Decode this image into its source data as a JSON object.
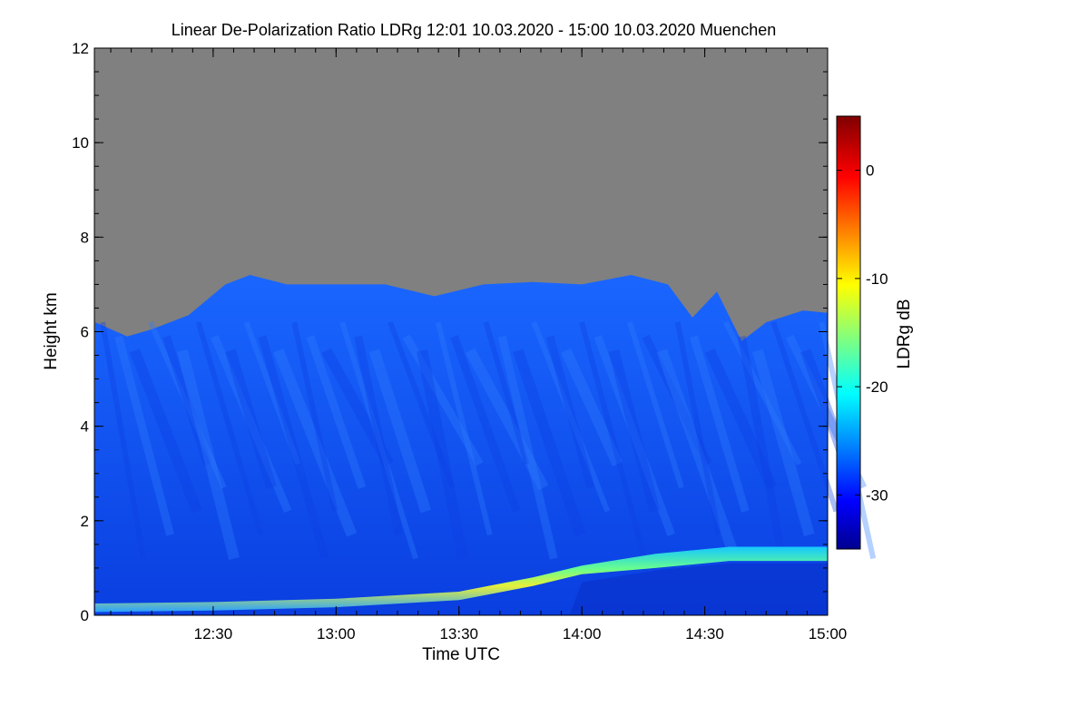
{
  "chart_data": {
    "type": "heatmap",
    "title": "Linear De-Polarization Ratio LDRg   12:01 10.03.2020 - 15:00 10.03.2020 Muenchen",
    "xlabel": "Time UTC",
    "ylabel": "Height km",
    "x_range_hours": [
      12.0167,
      15.0
    ],
    "y_range_km": [
      0,
      12
    ],
    "x_ticks": [
      {
        "value": 12.5,
        "label": "12:30"
      },
      {
        "value": 13.0,
        "label": "13:00"
      },
      {
        "value": 13.5,
        "label": "13:30"
      },
      {
        "value": 14.0,
        "label": "14:00"
      },
      {
        "value": 14.5,
        "label": "14:30"
      },
      {
        "value": 15.0,
        "label": "15:00"
      }
    ],
    "y_ticks": [
      {
        "value": 0,
        "label": "0"
      },
      {
        "value": 2,
        "label": "2"
      },
      {
        "value": 4,
        "label": "4"
      },
      {
        "value": 6,
        "label": "6"
      },
      {
        "value": 8,
        "label": "8"
      },
      {
        "value": 10,
        "label": "10"
      },
      {
        "value": 12,
        "label": "12"
      }
    ],
    "colorbar": {
      "label": "LDRg dB",
      "range": [
        -35,
        5
      ],
      "colormap": "jet",
      "ticks": [
        {
          "value": 0,
          "label": "0"
        },
        {
          "value": -10,
          "label": "-10"
        },
        {
          "value": -20,
          "label": "-20"
        },
        {
          "value": -30,
          "label": "-30"
        }
      ]
    },
    "no_signal_color": "#808080",
    "layers": {
      "signal_top_km": [
        {
          "t": 12.02,
          "h": 6.2
        },
        {
          "t": 12.15,
          "h": 5.9
        },
        {
          "t": 12.25,
          "h": 6.05
        },
        {
          "t": 12.4,
          "h": 6.35
        },
        {
          "t": 12.55,
          "h": 7.0
        },
        {
          "t": 12.65,
          "h": 7.2
        },
        {
          "t": 12.8,
          "h": 7.0
        },
        {
          "t": 13.0,
          "h": 7.0
        },
        {
          "t": 13.2,
          "h": 7.0
        },
        {
          "t": 13.4,
          "h": 6.75
        },
        {
          "t": 13.6,
          "h": 7.0
        },
        {
          "t": 13.8,
          "h": 7.05
        },
        {
          "t": 14.0,
          "h": 7.0
        },
        {
          "t": 14.2,
          "h": 7.2
        },
        {
          "t": 14.35,
          "h": 7.0
        },
        {
          "t": 14.45,
          "h": 6.3
        },
        {
          "t": 14.55,
          "h": 6.85
        },
        {
          "t": 14.65,
          "h": 5.8
        },
        {
          "t": 14.75,
          "h": 6.2
        },
        {
          "t": 14.9,
          "h": 6.45
        },
        {
          "t": 15.0,
          "h": 6.4
        }
      ],
      "boundary_layer_top_km": [
        {
          "t": 12.02,
          "h": 0.25
        },
        {
          "t": 12.5,
          "h": 0.28
        },
        {
          "t": 13.0,
          "h": 0.35
        },
        {
          "t": 13.5,
          "h": 0.5
        },
        {
          "t": 13.8,
          "h": 0.8
        },
        {
          "t": 14.0,
          "h": 1.05
        },
        {
          "t": 14.3,
          "h": 1.3
        },
        {
          "t": 14.6,
          "h": 1.45
        },
        {
          "t": 15.0,
          "h": 1.45
        }
      ],
      "boundary_layer_ldr_db": -15,
      "boundary_layer_peak_ldr_db": -8,
      "background_ldr_db": -28,
      "low_signal_ldr_db": -32
    }
  }
}
